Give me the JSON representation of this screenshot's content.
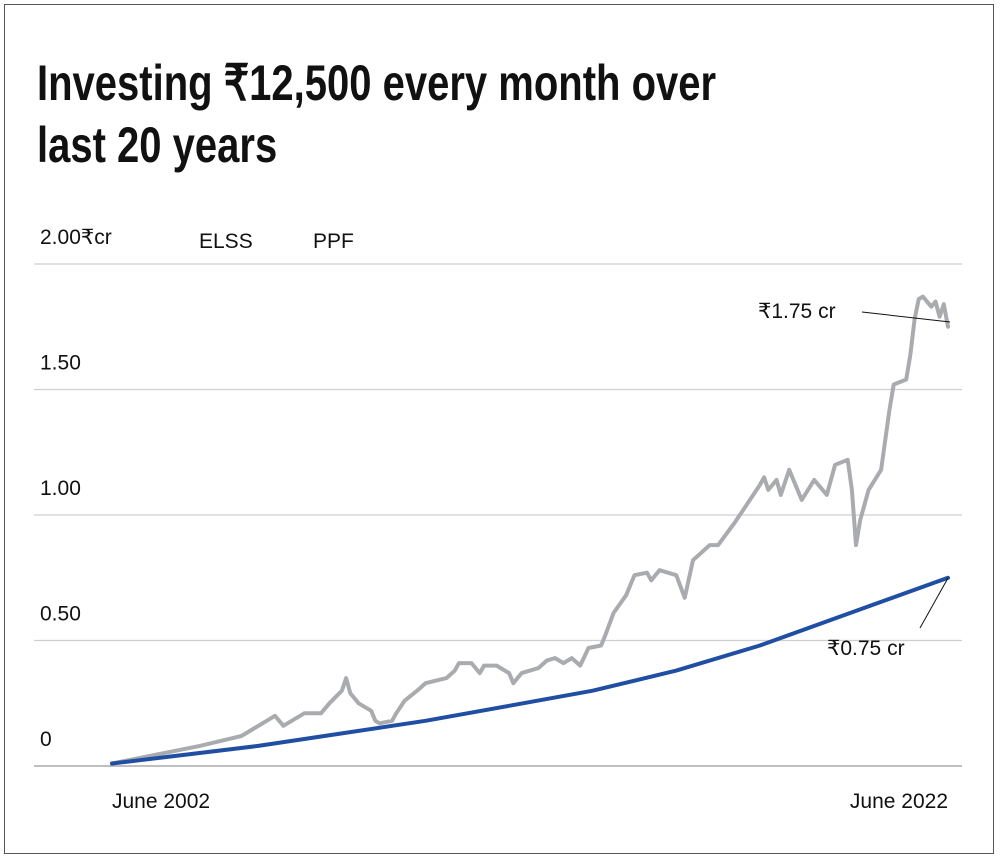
{
  "title_line1": "Investing ₹12,500 every month over",
  "title_line2": "last 20 years",
  "chart_data": {
    "type": "line",
    "title": "Investing ₹12,500 every month over last 20 years",
    "ylabel_unit": "₹cr",
    "ylim": [
      0,
      2.0
    ],
    "xlim": [
      2002.5,
      2022.5
    ],
    "y_ticks": [
      {
        "value": 0,
        "label": "0"
      },
      {
        "value": 0.5,
        "label": "0.50"
      },
      {
        "value": 1.0,
        "label": "1.00"
      },
      {
        "value": 1.5,
        "label": "1.50"
      },
      {
        "value": 2.0,
        "label": "2.00"
      }
    ],
    "x_ticks": [
      {
        "value": 2002.5,
        "label": "June 2002"
      },
      {
        "value": 2022.5,
        "label": "June 2022"
      }
    ],
    "grid": true,
    "legend_placement": "top-left",
    "series": [
      {
        "name": "ELSS",
        "color": "#a9abae",
        "x": [
          2002.5,
          2003.4,
          2004.0,
          2004.6,
          2005.1,
          2005.6,
          2005.9,
          2006.2,
          2006.4,
          2006.6,
          2006.9,
          2007.1,
          2007.5,
          2007.7,
          2008.0,
          2008.1,
          2008.2,
          2008.4,
          2008.7,
          2008.8,
          2008.9,
          2009.2,
          2009.3,
          2009.5,
          2009.8,
          2010.0,
          2010.5,
          2010.7,
          2010.8,
          2011.1,
          2011.3,
          2011.4,
          2011.7,
          2012.0,
          2012.1,
          2012.3,
          2012.7,
          2012.9,
          2013.1,
          2013.3,
          2013.5,
          2013.7,
          2013.9,
          2014.2,
          2014.3,
          2014.5,
          2014.8,
          2015.0,
          2015.3,
          2015.4,
          2015.6,
          2016.0,
          2016.2,
          2016.4,
          2016.8,
          2017.0,
          2017.4,
          2017.6,
          2018.0,
          2018.1,
          2018.2,
          2018.4,
          2018.5,
          2018.7,
          2019.0,
          2019.3,
          2019.6,
          2019.8,
          2020.1,
          2020.2,
          2020.3,
          2020.4,
          2020.6,
          2020.9,
          2021.1,
          2021.2,
          2021.5,
          2021.6,
          2021.7,
          2021.8,
          2021.9,
          2022.1,
          2022.2,
          2022.3,
          2022.4,
          2022.5
        ],
        "values": [
          0.01,
          0.04,
          0.06,
          0.08,
          0.1,
          0.12,
          0.15,
          0.18,
          0.2,
          0.16,
          0.19,
          0.21,
          0.21,
          0.25,
          0.3,
          0.35,
          0.29,
          0.25,
          0.22,
          0.18,
          0.17,
          0.18,
          0.21,
          0.26,
          0.3,
          0.33,
          0.35,
          0.38,
          0.41,
          0.41,
          0.37,
          0.4,
          0.4,
          0.37,
          0.33,
          0.37,
          0.39,
          0.42,
          0.43,
          0.41,
          0.43,
          0.4,
          0.47,
          0.48,
          0.52,
          0.61,
          0.68,
          0.76,
          0.77,
          0.74,
          0.78,
          0.76,
          0.67,
          0.82,
          0.88,
          0.88,
          0.97,
          1.02,
          1.12,
          1.15,
          1.1,
          1.14,
          1.08,
          1.18,
          1.06,
          1.14,
          1.08,
          1.2,
          1.22,
          1.1,
          0.88,
          0.98,
          1.1,
          1.18,
          1.42,
          1.52,
          1.54,
          1.64,
          1.78,
          1.86,
          1.87,
          1.83,
          1.85,
          1.79,
          1.84,
          1.75
        ]
      },
      {
        "name": "PPF",
        "color": "#1f4ea3",
        "x": [
          2002.5,
          2004,
          2006,
          2008,
          2010,
          2012,
          2014,
          2016,
          2018,
          2020,
          2022.5
        ],
        "values": [
          0.01,
          0.04,
          0.08,
          0.13,
          0.18,
          0.24,
          0.3,
          0.38,
          0.48,
          0.6,
          0.75
        ]
      }
    ],
    "annotations": [
      {
        "series": "ELSS",
        "text": "₹1.75 cr"
      },
      {
        "series": "PPF",
        "text": "₹0.75 cr"
      }
    ]
  }
}
